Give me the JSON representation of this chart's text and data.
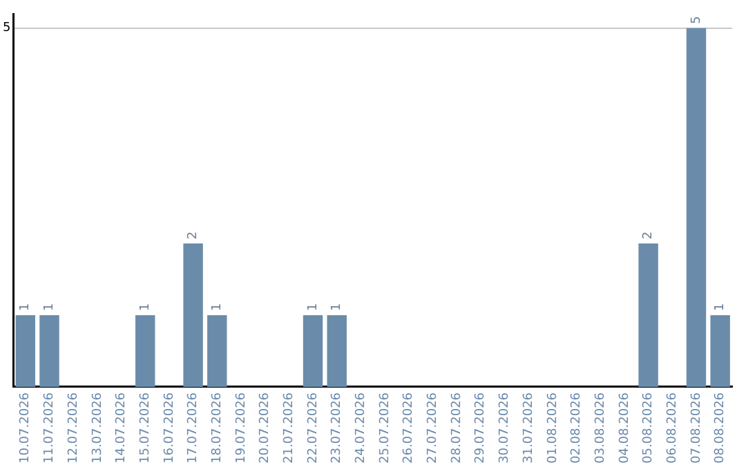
{
  "chart_data": {
    "type": "bar",
    "categories": [
      "10.07.2026",
      "11.07.2026",
      "12.07.2026",
      "13.07.2026",
      "14.07.2026",
      "15.07.2026",
      "16.07.2026",
      "17.07.2026",
      "18.07.2026",
      "19.07.2026",
      "20.07.2026",
      "21.07.2026",
      "22.07.2026",
      "23.07.2026",
      "24.07.2026",
      "25.07.2026",
      "26.07.2026",
      "27.07.2026",
      "28.07.2026",
      "29.07.2026",
      "30.07.2026",
      "31.07.2026",
      "01.08.2026",
      "02.08.2026",
      "03.08.2026",
      "04.08.2026",
      "05.08.2026",
      "06.08.2026",
      "07.08.2026",
      "08.08.2026"
    ],
    "values": [
      1,
      1,
      0,
      0,
      0,
      1,
      0,
      2,
      1,
      0,
      0,
      0,
      1,
      1,
      0,
      0,
      0,
      0,
      0,
      0,
      0,
      0,
      0,
      0,
      0,
      0,
      2,
      0,
      5,
      1
    ],
    "value_labels": [
      "1",
      "1",
      null,
      null,
      null,
      "1",
      null,
      "2",
      "1",
      null,
      null,
      null,
      "1",
      "1",
      null,
      null,
      null,
      null,
      null,
      null,
      null,
      null,
      null,
      null,
      null,
      null,
      "2",
      null,
      "5",
      "1"
    ],
    "color": "#6a8caa",
    "ylim": [
      0,
      5.2
    ],
    "yticks": [
      5
    ],
    "grid": "y",
    "legend": false
  }
}
